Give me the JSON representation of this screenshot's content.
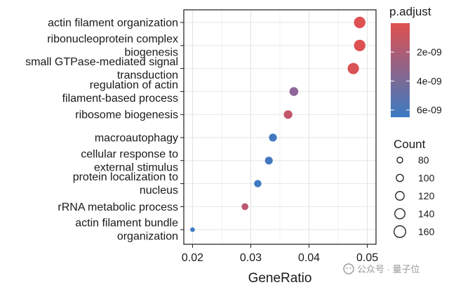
{
  "chart_data": {
    "type": "scatter",
    "title": "",
    "xlabel": "GeneRatio",
    "ylabel": "",
    "xlim": [
      0.0185,
      0.0515
    ],
    "xticks": [
      0.02,
      0.03,
      0.04,
      0.05
    ],
    "xtick_labels": [
      "0.02",
      "0.03",
      "0.04",
      "0.05"
    ],
    "grid": true,
    "points": [
      {
        "label": [
          "actin filament organization"
        ],
        "x": 0.0487,
        "count": 158,
        "p_adjust": 1e-10
      },
      {
        "label": [
          "ribonucleoprotein complex",
          "biogenesis"
        ],
        "x": 0.0487,
        "count": 158,
        "p_adjust": 1e-10
      },
      {
        "label": [
          "small GTPase-mediated signal",
          "transduction"
        ],
        "x": 0.0476,
        "count": 155,
        "p_adjust": 3e-10
      },
      {
        "label": [
          "regulation of actin",
          "filament-based process"
        ],
        "x": 0.0374,
        "count": 122,
        "p_adjust": 3.4e-09
      },
      {
        "label": [
          "ribosome biogenesis"
        ],
        "x": 0.0364,
        "count": 119,
        "p_adjust": 1.2e-09
      },
      {
        "label": [
          "macroautophagy"
        ],
        "x": 0.0338,
        "count": 110,
        "p_adjust": 6.2e-09
      },
      {
        "label": [
          "cellular response to",
          "external stimulus"
        ],
        "x": 0.0331,
        "count": 108,
        "p_adjust": 6.2e-09
      },
      {
        "label": [
          "protein localization to",
          "nucleus"
        ],
        "x": 0.0312,
        "count": 102,
        "p_adjust": 6.3e-09
      },
      {
        "label": [
          "rRNA metabolic process"
        ],
        "x": 0.029,
        "count": 95,
        "p_adjust": 1.5e-09
      },
      {
        "label": [
          "actin filament bundle",
          "organization"
        ],
        "x": 0.02,
        "count": 65,
        "p_adjust": 6.4e-09
      }
    ],
    "color_legend": {
      "title": "p.adjust",
      "min": 0.0,
      "max": 6.5e-09,
      "low_color": "#e05050",
      "high_color": "#3a7bc4",
      "ticks": [
        2e-09,
        4e-09,
        6e-09
      ],
      "tick_labels": [
        "2e-09",
        "4e-09",
        "6e-09"
      ]
    },
    "size_legend": {
      "title": "Count",
      "values": [
        80,
        100,
        120,
        140,
        160
      ],
      "labels": [
        "80",
        "100",
        "120",
        "140",
        "160"
      ]
    }
  },
  "watermark": "公众号 · 量子位"
}
